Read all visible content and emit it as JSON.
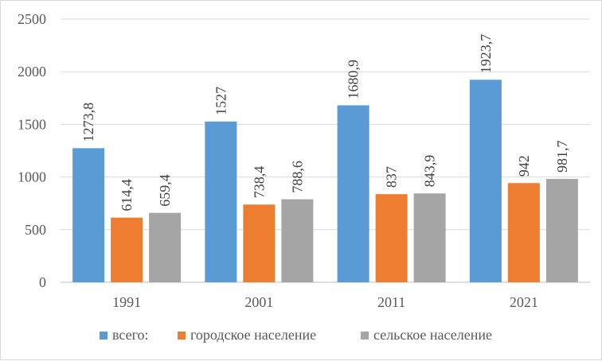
{
  "chart_data": {
    "type": "bar",
    "categories": [
      "1991",
      "2001",
      "2011",
      "2021"
    ],
    "series": [
      {
        "name": "всего:",
        "color": "#5b9bd5",
        "values": [
          1273.8,
          1527,
          1680.9,
          1923.7
        ],
        "labels": [
          "1273,8",
          "1527",
          "1680,9",
          "1923,7"
        ]
      },
      {
        "name": "городское население",
        "color": "#ed7d31",
        "values": [
          614.4,
          738.4,
          837,
          942
        ],
        "labels": [
          "614,4",
          "738,4",
          "837",
          "942"
        ]
      },
      {
        "name": "сельское население",
        "color": "#a5a5a5",
        "values": [
          659.4,
          788.6,
          843.9,
          981.7
        ],
        "labels": [
          "659,4",
          "788,6",
          "843,9",
          "981,7"
        ]
      }
    ],
    "ylim": [
      0,
      2500
    ],
    "yticks": [
      "0",
      "500",
      "1000",
      "1500",
      "2000",
      "2500"
    ],
    "ytick_values": [
      0,
      500,
      1000,
      1500,
      2000,
      2500
    ],
    "grid": "horizontal",
    "legend_position": "bottom",
    "gridline_color": "#d9d9d9",
    "axis_color": "#bfbfbf"
  }
}
